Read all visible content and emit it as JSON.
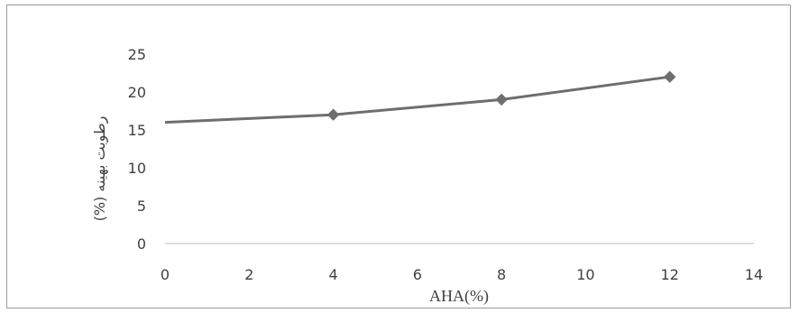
{
  "chart_data": {
    "type": "line",
    "title": "",
    "xlabel": "AHA(%)",
    "ylabel": "رطوبت بهینه (%)",
    "xlim": [
      0,
      14
    ],
    "ylim": [
      0,
      25
    ],
    "x_ticks": [
      "0",
      "2",
      "4",
      "6",
      "8",
      "10",
      "12",
      "14"
    ],
    "y_ticks": [
      "0",
      "5",
      "10",
      "15",
      "20",
      "25"
    ],
    "grid": false,
    "series": [
      {
        "x": [
          0,
          4,
          8,
          12
        ],
        "values": [
          16,
          17,
          19,
          22
        ],
        "markers": [
          false,
          true,
          true,
          true
        ],
        "color": "#6e6e6e"
      }
    ]
  }
}
